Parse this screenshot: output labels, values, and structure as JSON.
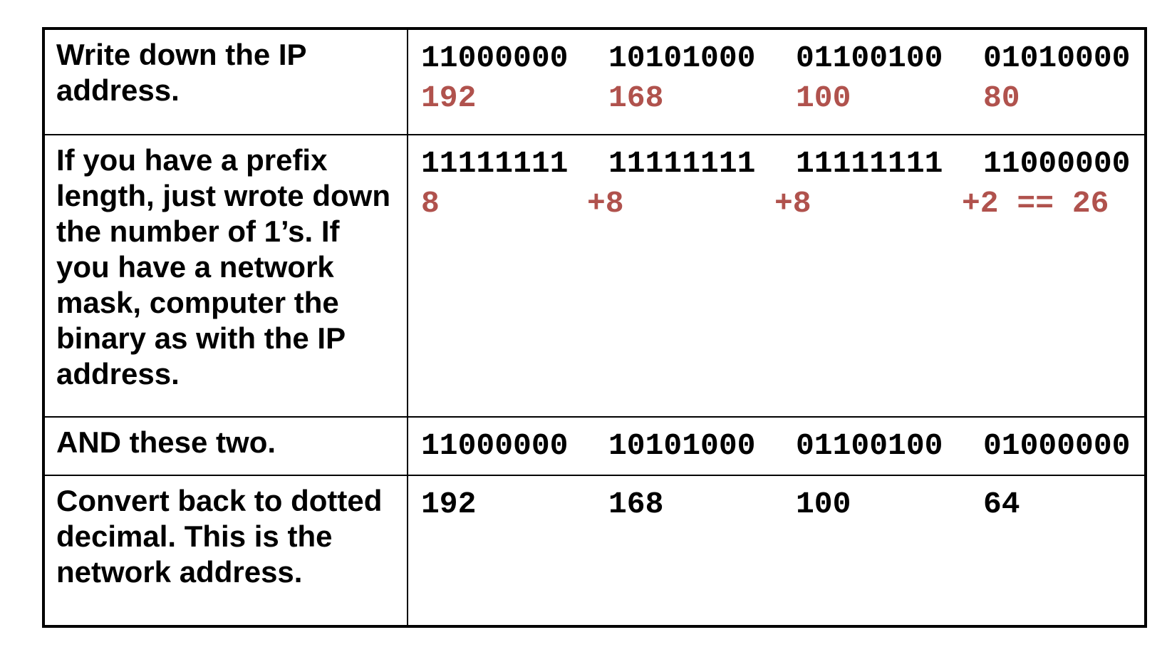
{
  "rows": [
    {
      "instruction": "Write down the IP address.",
      "binary": [
        "11000000",
        "10101000",
        "01100100",
        "01010000"
      ],
      "decimal": [
        "192",
        "168",
        "100",
        "80"
      ],
      "decimal_color": "#b0524d"
    },
    {
      "instruction": "If you have a prefix length, just wrote down the number of 1’s. If you have a network mask, computer the binary as with the IP address.",
      "binary": [
        "11111111",
        "11111111",
        "11111111",
        "11000000"
      ],
      "counts": [
        "8",
        "+8",
        "+8",
        "+2 == 26"
      ],
      "counts_color": "#b0524d"
    },
    {
      "instruction": "AND these two.",
      "binary": [
        "11000000",
        "10101000",
        "01100100",
        "01000000"
      ]
    },
    {
      "instruction": "Convert back to dotted decimal. This is the network address.",
      "decimal": [
        "192",
        "168",
        "100",
        "64"
      ],
      "decimal_color": "#000000"
    }
  ]
}
